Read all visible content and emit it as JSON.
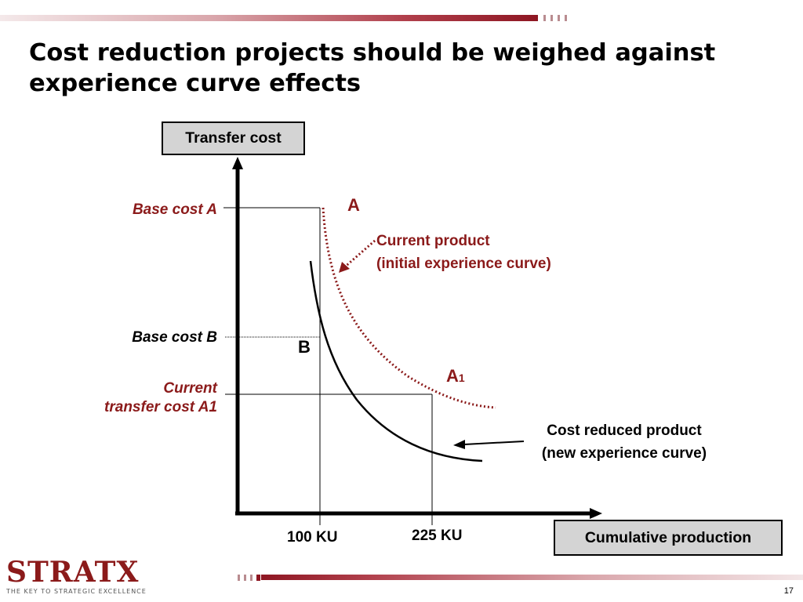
{
  "slide": {
    "title": "Cost reduction projects should be weighed against experience curve effects",
    "page_number": "17"
  },
  "diagram": {
    "y_axis_box": "Transfer cost",
    "x_axis_box": "Cumulative production",
    "labels": {
      "base_cost_a": "Base cost A",
      "base_cost_b": "Base cost B",
      "current_line1": "Current",
      "current_line2": "transfer cost A1",
      "point_a": "A",
      "point_b": "B",
      "point_a1_main": "A",
      "point_a1_sub": "1",
      "current_product_line1": "Current product",
      "current_product_line2": "(initial experience curve)",
      "cost_reduced_line1": "Cost reduced product",
      "cost_reduced_line2": "(new experience curve)",
      "tick_100": "100 KU",
      "tick_225": "225 KU"
    },
    "colors": {
      "accent": "#8b1a1a",
      "box_fill": "#d4d4d4",
      "line": "#000000"
    }
  },
  "logo": {
    "name": "STRATX",
    "tagline": "THE KEY TO STRATEGIC EXCELLENCE"
  }
}
